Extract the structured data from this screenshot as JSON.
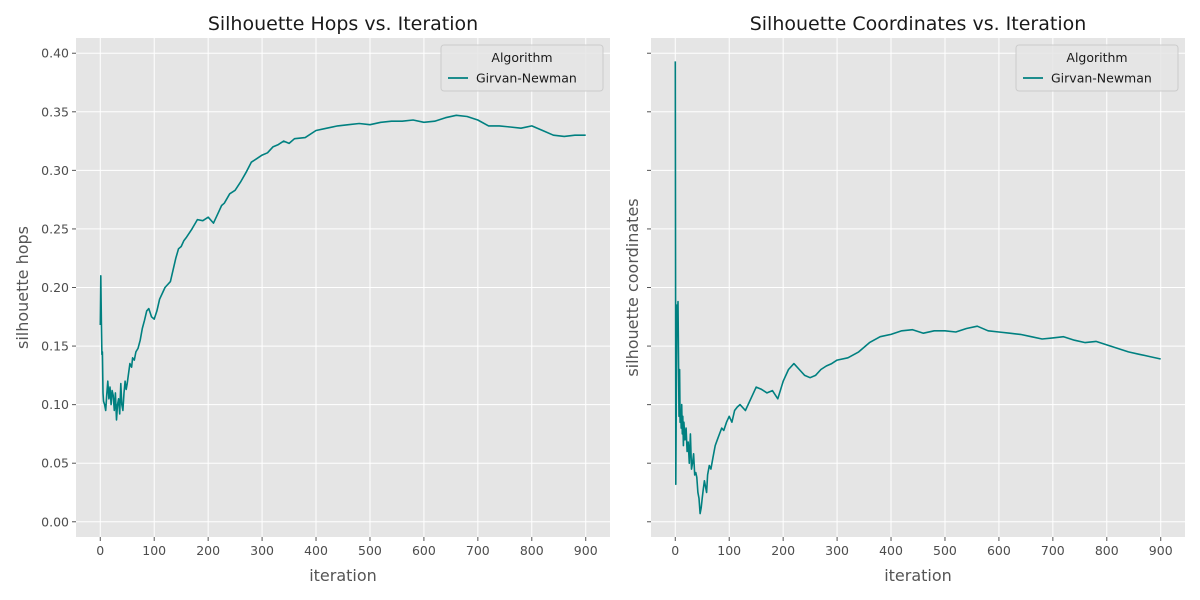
{
  "chart_data": [
    {
      "type": "line",
      "title": "Silhouette Hops vs. Iteration",
      "xlabel": "iteration",
      "ylabel": "silhouette hops",
      "xlim": [
        -45,
        945
      ],
      "ylim": [
        -0.013,
        0.413
      ],
      "xticks": [
        0,
        100,
        200,
        300,
        400,
        500,
        600,
        700,
        800,
        900
      ],
      "yticks": [
        0.0,
        0.05,
        0.1,
        0.15,
        0.2,
        0.25,
        0.3,
        0.35,
        0.4
      ],
      "ytick_labels": [
        "0.00",
        "0.05",
        "0.10",
        "0.15",
        "0.20",
        "0.25",
        "0.30",
        "0.35",
        "0.40"
      ],
      "grid": true,
      "legend": {
        "title": "Algorithm",
        "placement": "top-right"
      },
      "series": [
        {
          "name": "Girvan-Newman",
          "color": "#008080",
          "x": [
            0,
            1,
            2,
            3,
            4,
            5,
            6,
            8,
            10,
            12,
            14,
            16,
            18,
            20,
            22,
            24,
            26,
            28,
            30,
            32,
            34,
            36,
            38,
            40,
            42,
            44,
            46,
            48,
            50,
            52,
            55,
            58,
            60,
            63,
            66,
            70,
            74,
            78,
            82,
            86,
            90,
            95,
            100,
            105,
            110,
            115,
            120,
            130,
            140,
            145,
            150,
            155,
            160,
            170,
            180,
            190,
            200,
            210,
            220,
            225,
            230,
            240,
            250,
            260,
            270,
            280,
            290,
            300,
            310,
            320,
            330,
            340,
            350,
            360,
            380,
            400,
            420,
            440,
            460,
            480,
            500,
            520,
            540,
            560,
            580,
            600,
            620,
            640,
            660,
            680,
            700,
            720,
            740,
            760,
            780,
            800,
            820,
            840,
            860,
            880,
            900
          ],
          "y": [
            0.168,
            0.21,
            0.17,
            0.143,
            0.145,
            0.11,
            0.103,
            0.1,
            0.095,
            0.108,
            0.12,
            0.105,
            0.115,
            0.1,
            0.112,
            0.108,
            0.095,
            0.11,
            0.087,
            0.1,
            0.105,
            0.092,
            0.118,
            0.1,
            0.095,
            0.11,
            0.12,
            0.113,
            0.118,
            0.125,
            0.135,
            0.132,
            0.14,
            0.138,
            0.145,
            0.148,
            0.155,
            0.165,
            0.172,
            0.18,
            0.182,
            0.175,
            0.173,
            0.18,
            0.19,
            0.195,
            0.2,
            0.205,
            0.225,
            0.233,
            0.235,
            0.24,
            0.243,
            0.25,
            0.258,
            0.257,
            0.26,
            0.255,
            0.265,
            0.27,
            0.272,
            0.28,
            0.283,
            0.29,
            0.298,
            0.307,
            0.31,
            0.313,
            0.315,
            0.32,
            0.322,
            0.325,
            0.323,
            0.327,
            0.328,
            0.334,
            0.336,
            0.338,
            0.339,
            0.34,
            0.339,
            0.341,
            0.342,
            0.342,
            0.343,
            0.341,
            0.342,
            0.345,
            0.347,
            0.346,
            0.343,
            0.338,
            0.338,
            0.337,
            0.336,
            0.338,
            0.334,
            0.33,
            0.329,
            0.33,
            0.33
          ]
        }
      ]
    },
    {
      "type": "line",
      "title": "Silhouette Coordinates vs. Iteration",
      "xlabel": "iteration",
      "ylabel": "silhouette coordinates",
      "xlim": [
        -45,
        945
      ],
      "ylim": [
        -0.013,
        0.413
      ],
      "xticks": [
        0,
        100,
        200,
        300,
        400,
        500,
        600,
        700,
        800,
        900
      ],
      "grid": true,
      "legend": {
        "title": "Algorithm",
        "placement": "top-right"
      },
      "series": [
        {
          "name": "Girvan-Newman",
          "color": "#008080",
          "x": [
            0,
            1,
            2,
            3,
            4,
            5,
            6,
            7,
            8,
            9,
            10,
            11,
            12,
            13,
            14,
            15,
            16,
            18,
            20,
            22,
            24,
            26,
            28,
            30,
            32,
            34,
            36,
            38,
            40,
            42,
            44,
            46,
            48,
            50,
            52,
            54,
            56,
            58,
            60,
            63,
            66,
            70,
            74,
            78,
            82,
            86,
            90,
            95,
            100,
            105,
            110,
            115,
            120,
            130,
            140,
            150,
            160,
            170,
            180,
            190,
            200,
            210,
            220,
            230,
            240,
            250,
            260,
            270,
            280,
            290,
            300,
            320,
            340,
            360,
            380,
            400,
            420,
            440,
            460,
            480,
            500,
            520,
            540,
            560,
            580,
            600,
            620,
            640,
            660,
            680,
            700,
            720,
            740,
            760,
            780,
            800,
            820,
            840,
            860,
            880,
            900
          ],
          "y": [
            0.393,
            0.032,
            0.12,
            0.185,
            0.17,
            0.188,
            0.14,
            0.09,
            0.13,
            0.085,
            0.095,
            0.08,
            0.1,
            0.075,
            0.09,
            0.065,
            0.085,
            0.07,
            0.08,
            0.06,
            0.068,
            0.05,
            0.075,
            0.045,
            0.05,
            0.058,
            0.04,
            0.042,
            0.038,
            0.025,
            0.02,
            0.007,
            0.012,
            0.02,
            0.028,
            0.035,
            0.03,
            0.025,
            0.04,
            0.048,
            0.045,
            0.055,
            0.065,
            0.07,
            0.075,
            0.08,
            0.078,
            0.085,
            0.09,
            0.085,
            0.095,
            0.098,
            0.1,
            0.095,
            0.105,
            0.115,
            0.113,
            0.11,
            0.112,
            0.105,
            0.12,
            0.13,
            0.135,
            0.13,
            0.125,
            0.123,
            0.125,
            0.13,
            0.133,
            0.135,
            0.138,
            0.14,
            0.145,
            0.153,
            0.158,
            0.16,
            0.163,
            0.164,
            0.161,
            0.163,
            0.163,
            0.162,
            0.165,
            0.167,
            0.163,
            0.162,
            0.161,
            0.16,
            0.158,
            0.156,
            0.157,
            0.158,
            0.155,
            0.153,
            0.154,
            0.151,
            0.148,
            0.145,
            0.143,
            0.141,
            0.139
          ]
        }
      ]
    }
  ]
}
